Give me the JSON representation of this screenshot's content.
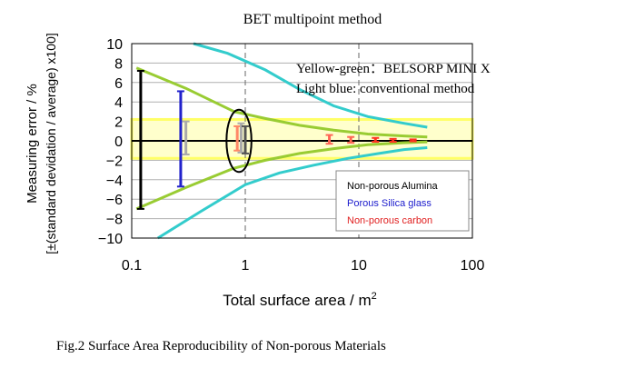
{
  "chart_data": {
    "type": "line",
    "title": "BET multipoint method",
    "xlabel": "Total surface area / m",
    "xlabel_superscript": "2",
    "ylabel_line1": "Measuring error / %",
    "ylabel_line2": "[±(standard devidation / average) x100]",
    "x_scale": "log",
    "xlim": [
      0.1,
      100
    ],
    "ylim": [
      -10,
      10
    ],
    "x_ticks": [
      "0.1",
      "1",
      "10",
      "100"
    ],
    "y_ticks": [
      "10",
      "8",
      "6",
      "4",
      "2",
      "0",
      "−2",
      "−4",
      "−6",
      "−8",
      "−10"
    ],
    "band": {
      "ymin": -1.8,
      "ymax": 2.2,
      "color": "#ffff66"
    },
    "series": [
      {
        "color": "#99cc33",
        "upper": [
          [
            0.11,
            7.5
          ],
          [
            0.3,
            5.4
          ],
          [
            0.8,
            3.0
          ],
          [
            1.5,
            2.3
          ],
          [
            3,
            1.6
          ],
          [
            6,
            1.1
          ],
          [
            12,
            0.7
          ],
          [
            25,
            0.5
          ],
          [
            40,
            0.4
          ]
        ],
        "lower": [
          [
            0.11,
            -7.0
          ],
          [
            0.3,
            -4.8
          ],
          [
            0.8,
            -2.8
          ],
          [
            1.5,
            -2.0
          ],
          [
            3,
            -1.3
          ],
          [
            6,
            -0.8
          ],
          [
            12,
            -0.4
          ],
          [
            25,
            -0.2
          ],
          [
            40,
            -0.1
          ]
        ]
      },
      {
        "color": "#33cccc",
        "upper": [
          [
            0.35,
            10.0
          ],
          [
            0.7,
            9.0
          ],
          [
            1.5,
            7.3
          ],
          [
            3,
            5.3
          ],
          [
            6,
            3.6
          ],
          [
            12,
            2.5
          ],
          [
            25,
            1.8
          ],
          [
            40,
            1.4
          ]
        ],
        "lower": [
          [
            0.17,
            -10.0
          ],
          [
            0.4,
            -7.3
          ],
          [
            1,
            -4.5
          ],
          [
            2,
            -3.3
          ],
          [
            4,
            -2.5
          ],
          [
            8,
            -1.8
          ],
          [
            15,
            -1.3
          ],
          [
            25,
            -0.9
          ],
          [
            40,
            -0.7
          ]
        ]
      }
    ],
    "error_bars": [
      {
        "x": 0.12,
        "ymin": -7.0,
        "ymax": 7.2,
        "color": "#000000"
      },
      {
        "x": 0.27,
        "ymin": -4.7,
        "ymax": 5.1,
        "color": "#2222cc"
      },
      {
        "x": 0.3,
        "ymin": -1.4,
        "ymax": 2.0,
        "color": "#aaaaaa"
      },
      {
        "x": 0.85,
        "ymin": -1.0,
        "ymax": 1.5,
        "color": "#ff8866"
      },
      {
        "x": 0.92,
        "ymin": -1.2,
        "ymax": 1.8,
        "color": "#aaaaaa"
      },
      {
        "x": 1.0,
        "ymin": -1.3,
        "ymax": 1.5,
        "color": "#555555"
      },
      {
        "x": 5.5,
        "ymin": -0.3,
        "ymax": 0.6,
        "color": "#ff6655"
      },
      {
        "x": 8.5,
        "ymin": -0.2,
        "ymax": 0.4,
        "color": "#ff6655"
      },
      {
        "x": 14,
        "ymin": -0.1,
        "ymax": 0.3,
        "color": "#ff3322"
      },
      {
        "x": 20,
        "ymin": -0.1,
        "ymax": 0.2,
        "color": "#ff3322"
      },
      {
        "x": 30,
        "ymin": -0.05,
        "ymax": 0.15,
        "color": "#ff3322"
      }
    ],
    "ellipse": {
      "cx": 0.88,
      "cy": 0.0,
      "rx_decades": 0.11,
      "ry": 3.2
    },
    "annotations": [
      {
        "text": "Yellow-green：BELSORP MINI X"
      },
      {
        "text": "Light blue: conventional method"
      }
    ],
    "legend": {
      "position": "lower-right",
      "entries": [
        {
          "label": "Non-porous Alumina",
          "color": "#000000"
        },
        {
          "label": "Porous Silica glass",
          "color": "#1a1acc"
        },
        {
          "label": "Non-porous carbon",
          "color": "#e02020"
        }
      ]
    },
    "caption": "Fig.2  Surface Area Reproducibility of Non-porous Materials"
  }
}
